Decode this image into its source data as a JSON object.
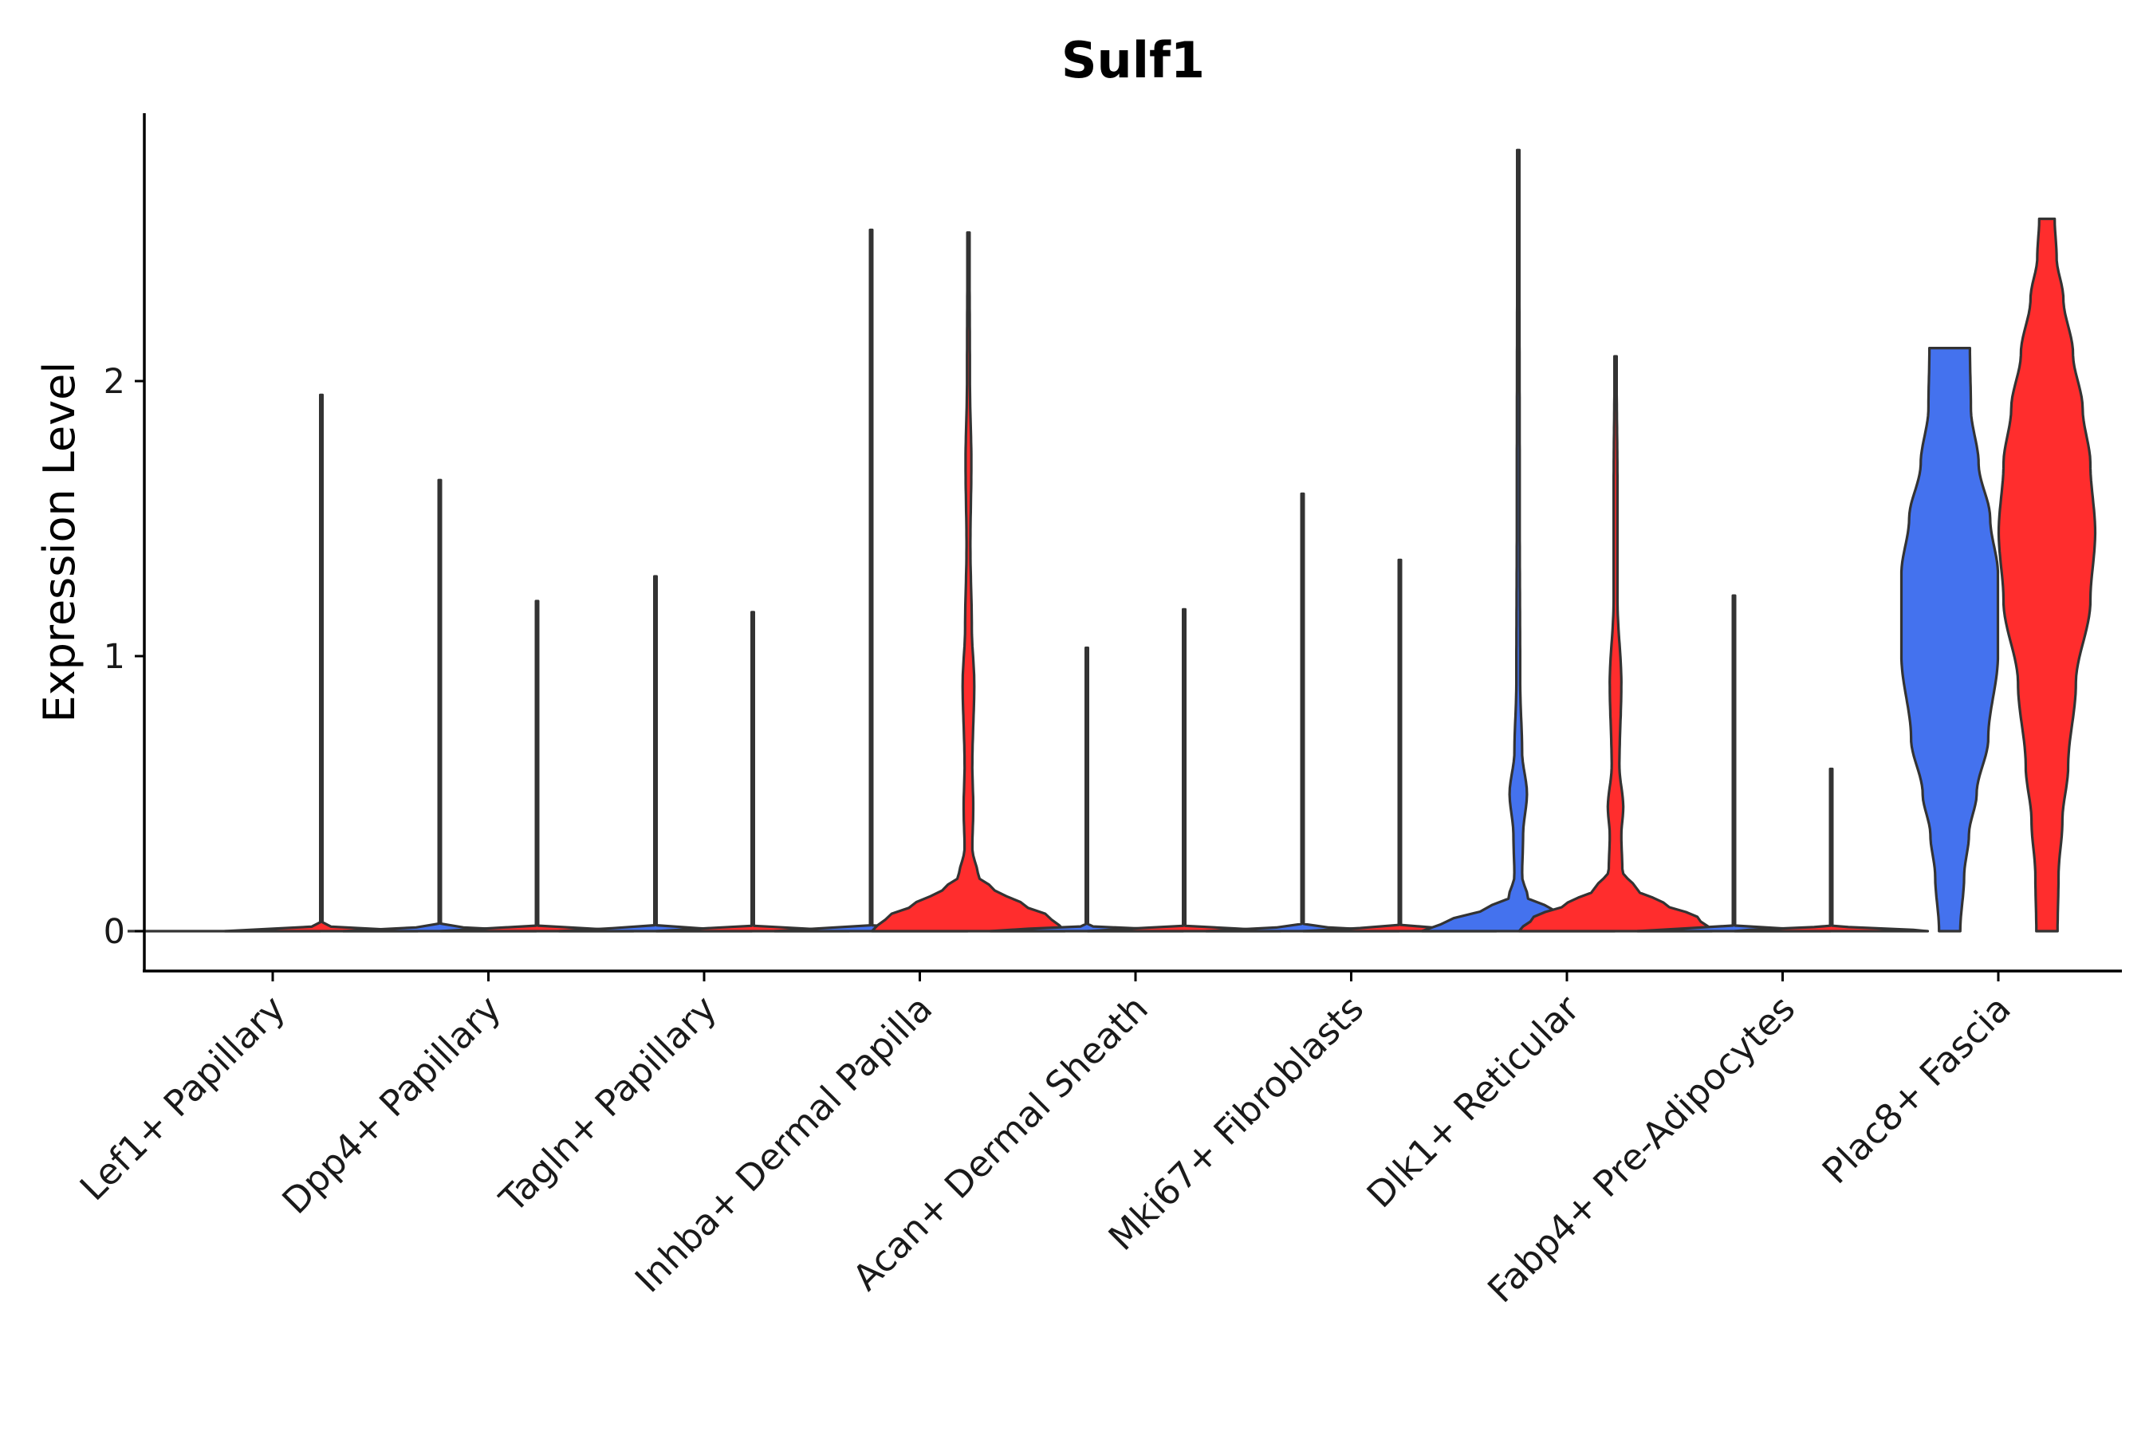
{
  "chart_data": {
    "type": "violin",
    "title": "Sulf1",
    "xlabel": "",
    "ylabel": "Expression Level",
    "ylim": [
      -0.14,
      2.98
    ],
    "yticks": [
      0,
      1,
      2
    ],
    "grid": false,
    "legend": "none",
    "colors": {
      "blue": "#4472ee",
      "red": "#ff2d2d",
      "outline": "#333333"
    },
    "categories": [
      "Lef1+ Papillary",
      "Dpp4+ Papillary",
      "Tagln+ Papillary",
      "Inhba+ Dermal Papilla",
      "Acan+ Dermal Sheath",
      "Mki67+ Fibroblasts",
      "Dlk1+ Reticular",
      "Fabp4+ Pre-Adipocytes",
      "Plac8+ Fascia"
    ],
    "groups": [
      {
        "category": 0,
        "violins": [
          {
            "color": "blue",
            "max": 0.0,
            "profile": [
              [
                0,
                1
              ]
            ]
          },
          {
            "color": "red",
            "max": 1.95,
            "profile": [
              [
                0,
                1
              ],
              [
                0.02,
                0.01
              ],
              [
                1.95,
                0.01
              ]
            ]
          }
        ]
      },
      {
        "category": 1,
        "violins": [
          {
            "color": "blue",
            "max": 1.64,
            "profile": [
              [
                0,
                1
              ],
              [
                0.02,
                0.01
              ],
              [
                1.64,
                0.01
              ]
            ]
          },
          {
            "color": "red",
            "max": 1.2,
            "profile": [
              [
                0,
                1
              ],
              [
                0.02,
                0.01
              ],
              [
                1.2,
                0.01
              ]
            ]
          }
        ]
      },
      {
        "category": 2,
        "violins": [
          {
            "color": "blue",
            "max": 1.29,
            "profile": [
              [
                0,
                1
              ],
              [
                0.02,
                0.01
              ],
              [
                1.29,
                0.01
              ]
            ]
          },
          {
            "color": "red",
            "max": 1.16,
            "profile": [
              [
                0,
                1
              ],
              [
                0.02,
                0.01
              ],
              [
                1.16,
                0.01
              ]
            ]
          }
        ]
      },
      {
        "category": 3,
        "violins": [
          {
            "color": "blue",
            "max": 2.55,
            "profile": [
              [
                0,
                1
              ],
              [
                0.02,
                0.01
              ],
              [
                2.55,
                0.01
              ]
            ]
          },
          {
            "color": "red",
            "max": 2.54,
            "profile": [
              [
                0,
                1
              ],
              [
                0.05,
                0.85
              ],
              [
                0.1,
                0.55
              ],
              [
                0.15,
                0.27
              ],
              [
                0.2,
                0.1
              ],
              [
                0.3,
                0.04
              ],
              [
                0.45,
                0.05
              ],
              [
                0.6,
                0.04
              ],
              [
                0.9,
                0.06
              ],
              [
                1.1,
                0.035
              ],
              [
                1.4,
                0.02
              ],
              [
                1.7,
                0.03
              ],
              [
                2.0,
                0.015
              ],
              [
                2.54,
                0.01
              ]
            ]
          }
        ]
      },
      {
        "category": 4,
        "violins": [
          {
            "color": "blue",
            "max": 1.03,
            "profile": [
              [
                0,
                1
              ],
              [
                0.02,
                0.01
              ],
              [
                1.03,
                0.01
              ]
            ]
          },
          {
            "color": "red",
            "max": 1.17,
            "profile": [
              [
                0,
                1
              ],
              [
                0.02,
                0.01
              ],
              [
                1.17,
                0.01
              ]
            ]
          }
        ]
      },
      {
        "category": 5,
        "violins": [
          {
            "color": "blue",
            "max": 1.59,
            "profile": [
              [
                0,
                1
              ],
              [
                0.02,
                0.01
              ],
              [
                1.59,
                0.01
              ]
            ]
          },
          {
            "color": "red",
            "max": 1.35,
            "profile": [
              [
                0,
                1
              ],
              [
                0.02,
                0.01
              ],
              [
                1.35,
                0.01
              ]
            ]
          }
        ]
      },
      {
        "category": 6,
        "violins": [
          {
            "color": "blue",
            "max": 2.84,
            "profile": [
              [
                0,
                1
              ],
              [
                0.04,
                0.7
              ],
              [
                0.08,
                0.35
              ],
              [
                0.12,
                0.1
              ],
              [
                0.2,
                0.04
              ],
              [
                0.35,
                0.05
              ],
              [
                0.5,
                0.09
              ],
              [
                0.65,
                0.04
              ],
              [
                0.9,
                0.02
              ],
              [
                1.5,
                0.015
              ],
              [
                2.84,
                0.01
              ]
            ]
          },
          {
            "color": "red",
            "max": 2.09,
            "profile": [
              [
                0,
                1
              ],
              [
                0.05,
                0.85
              ],
              [
                0.1,
                0.5
              ],
              [
                0.15,
                0.22
              ],
              [
                0.22,
                0.07
              ],
              [
                0.35,
                0.06
              ],
              [
                0.45,
                0.08
              ],
              [
                0.6,
                0.04
              ],
              [
                0.9,
                0.06
              ],
              [
                1.2,
                0.02
              ],
              [
                1.6,
                0.02
              ],
              [
                2.09,
                0.01
              ]
            ]
          }
        ]
      },
      {
        "category": 7,
        "violins": [
          {
            "color": "blue",
            "max": 1.22,
            "profile": [
              [
                0,
                1
              ],
              [
                0.02,
                0.01
              ],
              [
                1.22,
                0.01
              ]
            ]
          },
          {
            "color": "red",
            "max": 0.59,
            "profile": [
              [
                0,
                1
              ],
              [
                0.02,
                0.01
              ],
              [
                0.59,
                0.01
              ]
            ]
          }
        ]
      },
      {
        "category": 8,
        "violins": [
          {
            "color": "blue",
            "max": 2.12,
            "profile": [
              [
                0,
                0.11
              ],
              [
                0.2,
                0.15
              ],
              [
                0.35,
                0.2
              ],
              [
                0.5,
                0.28
              ],
              [
                0.7,
                0.4
              ],
              [
                1.0,
                0.5
              ],
              [
                1.3,
                0.5
              ],
              [
                1.5,
                0.42
              ],
              [
                1.7,
                0.3
              ],
              [
                1.9,
                0.22
              ],
              [
                2.12,
                0.21
              ]
            ]
          },
          {
            "color": "red",
            "max": 2.59,
            "profile": [
              [
                0,
                0.11
              ],
              [
                0.2,
                0.12
              ],
              [
                0.4,
                0.16
              ],
              [
                0.6,
                0.22
              ],
              [
                0.9,
                0.3
              ],
              [
                1.2,
                0.45
              ],
              [
                1.45,
                0.5
              ],
              [
                1.7,
                0.45
              ],
              [
                1.9,
                0.37
              ],
              [
                2.1,
                0.27
              ],
              [
                2.3,
                0.17
              ],
              [
                2.45,
                0.1
              ],
              [
                2.59,
                0.08
              ]
            ]
          }
        ]
      }
    ]
  }
}
